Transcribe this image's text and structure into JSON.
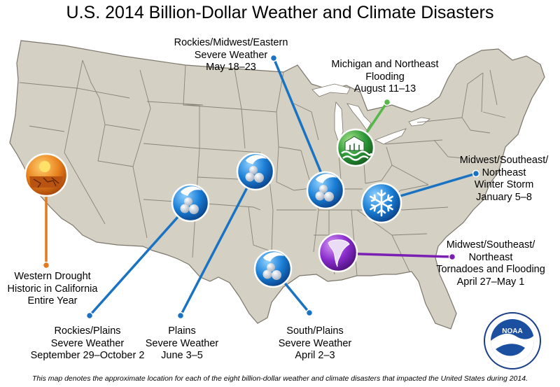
{
  "title": "U.S. 2014 Billion-Dollar Weather and Climate Disasters",
  "caption": "This map denotes the approximate location for each of the eight billion-dollar weather and climate disasters that impacted the United States during 2014.",
  "colors": {
    "land": "#d4d0c4",
    "state_border": "#8a8478",
    "severe_weather": "#1a73c2",
    "flood": "#2f9a3a",
    "drought": "#e07010",
    "tornado": "#7a1fb2"
  },
  "events": [
    {
      "id": "rockies-midwest-eastern-severe-weather",
      "type": "severe-weather",
      "lines": [
        "Rockies/Midwest/Eastern",
        "Severe Weather",
        "May 18–23"
      ]
    },
    {
      "id": "michigan-northeast-flooding",
      "type": "flood",
      "lines": [
        "Michigan and Northeast",
        "Flooding",
        "August 11–13"
      ]
    },
    {
      "id": "midwest-southeast-northeast-winter-storm",
      "type": "winter-storm",
      "lines": [
        "Midwest/Southeast/",
        "Northeast",
        "Winter Storm",
        "January 5–8"
      ]
    },
    {
      "id": "midwest-southeast-northeast-tornadoes-flooding",
      "type": "tornado",
      "lines": [
        "Midwest/Southeast/",
        "Northeast",
        "Tornadoes and Flooding",
        "April 27–May 1"
      ]
    },
    {
      "id": "western-drought",
      "type": "drought",
      "lines": [
        "Western Drought",
        "Historic in California",
        "Entire Year"
      ]
    },
    {
      "id": "rockies-plains-severe-weather",
      "type": "severe-weather",
      "lines": [
        "Rockies/Plains",
        "Severe Weather",
        "September 29–October 2"
      ]
    },
    {
      "id": "plains-severe-weather",
      "type": "severe-weather",
      "lines": [
        "Plains",
        "Severe Weather",
        "June 3–5"
      ]
    },
    {
      "id": "south-plains-severe-weather",
      "type": "severe-weather",
      "lines": [
        "South/Plains",
        "Severe Weather",
        "April 2–3"
      ]
    }
  ],
  "logo": {
    "text": "NOAA",
    "ring_text": "NATIONAL OCEANIC AND ATMOSPHERIC ADMINISTRATION · U.S. DEPARTMENT OF COMMERCE"
  }
}
